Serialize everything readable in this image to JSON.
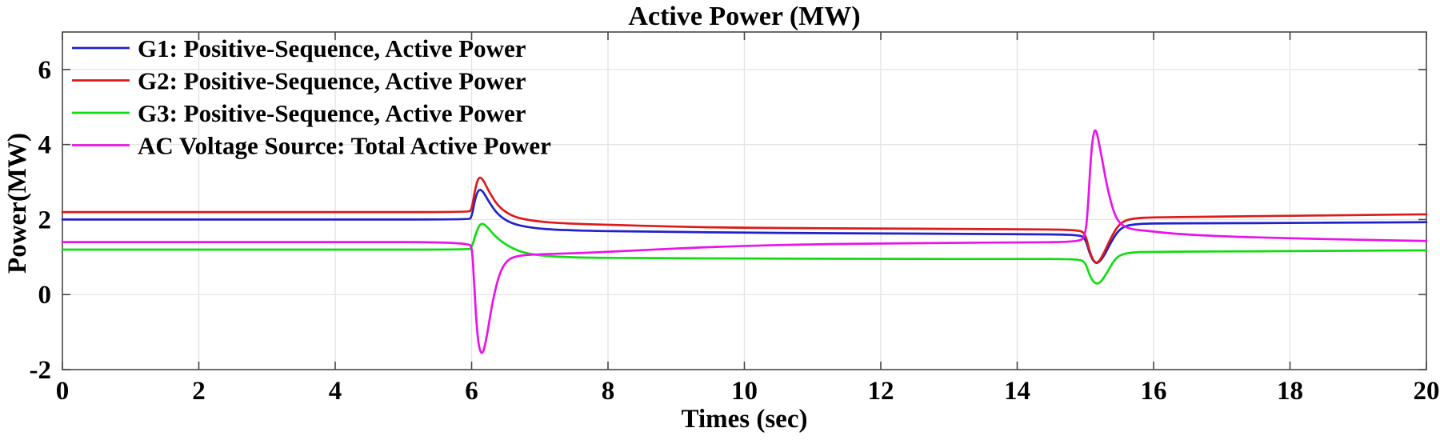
{
  "chart_data": {
    "type": "line",
    "title": "Active Power (MW)",
    "xlabel": "Times (sec)",
    "ylabel": "Power(MW)",
    "xlim": [
      0,
      20
    ],
    "ylim": [
      -2,
      7
    ],
    "xticks": [
      0,
      2,
      4,
      6,
      8,
      10,
      12,
      14,
      16,
      18,
      20
    ],
    "xtick_labels": [
      "0",
      "2",
      "4",
      "6",
      "8",
      "10",
      "12",
      "14",
      "16",
      "18",
      "20"
    ],
    "yticks": [
      -2,
      0,
      2,
      4,
      6
    ],
    "ytick_labels": [
      "-2",
      "0",
      "2",
      "4",
      "6"
    ],
    "grid": true,
    "legend_position": "top-left-inside",
    "legend_border": false,
    "colors": {
      "background": "#FFFFFF",
      "grid": "#E4E4E4",
      "axis": "#474747",
      "text": "#000000"
    },
    "series": [
      {
        "id": "g1",
        "name": "G1: Positive-Sequence, Active Power",
        "color": "#2121CC",
        "points": [
          [
            0,
            2.0
          ],
          [
            2,
            2.0
          ],
          [
            4,
            2.0
          ],
          [
            5.95,
            2.0
          ],
          [
            6.0,
            2.05
          ],
          [
            6.05,
            2.55
          ],
          [
            6.1,
            2.8
          ],
          [
            6.16,
            2.78
          ],
          [
            6.26,
            2.45
          ],
          [
            6.4,
            2.1
          ],
          [
            6.6,
            1.88
          ],
          [
            6.9,
            1.77
          ],
          [
            7.3,
            1.72
          ],
          [
            8,
            1.69
          ],
          [
            9,
            1.67
          ],
          [
            10,
            1.65
          ],
          [
            11,
            1.64
          ],
          [
            12,
            1.63
          ],
          [
            13,
            1.62
          ],
          [
            14,
            1.61
          ],
          [
            14.9,
            1.6
          ],
          [
            15.0,
            1.5
          ],
          [
            15.06,
            1.1
          ],
          [
            15.13,
            0.85
          ],
          [
            15.19,
            0.84
          ],
          [
            15.27,
            1.02
          ],
          [
            15.37,
            1.38
          ],
          [
            15.47,
            1.68
          ],
          [
            15.58,
            1.83
          ],
          [
            15.75,
            1.88
          ],
          [
            16,
            1.9
          ],
          [
            17,
            1.9
          ],
          [
            18,
            1.91
          ],
          [
            19,
            1.92
          ],
          [
            20,
            1.93
          ]
        ]
      },
      {
        "id": "g2",
        "name": "G2: Positive-Sequence, Active Power",
        "color": "#DC1A1A",
        "points": [
          [
            0,
            2.2
          ],
          [
            2,
            2.2
          ],
          [
            4,
            2.2
          ],
          [
            5.95,
            2.2
          ],
          [
            6.0,
            2.25
          ],
          [
            6.05,
            2.8
          ],
          [
            6.1,
            3.13
          ],
          [
            6.16,
            3.1
          ],
          [
            6.26,
            2.72
          ],
          [
            6.4,
            2.33
          ],
          [
            6.6,
            2.08
          ],
          [
            6.9,
            1.96
          ],
          [
            7.3,
            1.9
          ],
          [
            8,
            1.86
          ],
          [
            9,
            1.81
          ],
          [
            10,
            1.78
          ],
          [
            11,
            1.77
          ],
          [
            12,
            1.76
          ],
          [
            13,
            1.75
          ],
          [
            14,
            1.74
          ],
          [
            14.9,
            1.73
          ],
          [
            15.0,
            1.62
          ],
          [
            15.06,
            1.15
          ],
          [
            15.13,
            0.86
          ],
          [
            15.19,
            0.85
          ],
          [
            15.27,
            1.1
          ],
          [
            15.37,
            1.5
          ],
          [
            15.47,
            1.82
          ],
          [
            15.58,
            1.98
          ],
          [
            15.75,
            2.04
          ],
          [
            16,
            2.06
          ],
          [
            17,
            2.08
          ],
          [
            18,
            2.1
          ],
          [
            19,
            2.12
          ],
          [
            20,
            2.14
          ]
        ]
      },
      {
        "id": "g3",
        "name": "G3: Positive-Sequence, Active Power",
        "color": "#10DC10",
        "points": [
          [
            0,
            1.2
          ],
          [
            2,
            1.2
          ],
          [
            4,
            1.2
          ],
          [
            5.95,
            1.2
          ],
          [
            6.0,
            1.24
          ],
          [
            6.06,
            1.62
          ],
          [
            6.13,
            1.92
          ],
          [
            6.22,
            1.83
          ],
          [
            6.36,
            1.52
          ],
          [
            6.56,
            1.26
          ],
          [
            6.8,
            1.09
          ],
          [
            7.2,
            1.01
          ],
          [
            7.8,
            0.98
          ],
          [
            9,
            0.97
          ],
          [
            10,
            0.96
          ],
          [
            12,
            0.95
          ],
          [
            14,
            0.95
          ],
          [
            14.9,
            0.95
          ],
          [
            15.0,
            0.86
          ],
          [
            15.06,
            0.52
          ],
          [
            15.13,
            0.3
          ],
          [
            15.21,
            0.29
          ],
          [
            15.31,
            0.56
          ],
          [
            15.42,
            0.92
          ],
          [
            15.53,
            1.08
          ],
          [
            15.72,
            1.13
          ],
          [
            16,
            1.14
          ],
          [
            17,
            1.15
          ],
          [
            18,
            1.16
          ],
          [
            19,
            1.17
          ],
          [
            20,
            1.18
          ]
        ]
      },
      {
        "id": "ac-source",
        "name": "AC Voltage Source: Total Active Power",
        "color": "#EA12EA",
        "points": [
          [
            0,
            1.4
          ],
          [
            2,
            1.4
          ],
          [
            4,
            1.4
          ],
          [
            5.97,
            1.4
          ],
          [
            6.01,
            1.2
          ],
          [
            6.04,
            0.2
          ],
          [
            6.08,
            -1.0
          ],
          [
            6.12,
            -1.52
          ],
          [
            6.17,
            -1.58
          ],
          [
            6.23,
            -1.05
          ],
          [
            6.31,
            -0.15
          ],
          [
            6.41,
            0.58
          ],
          [
            6.52,
            0.92
          ],
          [
            6.66,
            1.03
          ],
          [
            6.9,
            1.07
          ],
          [
            7.5,
            1.1
          ],
          [
            8,
            1.14
          ],
          [
            9,
            1.23
          ],
          [
            10,
            1.3
          ],
          [
            11,
            1.34
          ],
          [
            12,
            1.36
          ],
          [
            13,
            1.38
          ],
          [
            14,
            1.39
          ],
          [
            14.9,
            1.4
          ],
          [
            15.0,
            1.55
          ],
          [
            15.04,
            2.4
          ],
          [
            15.08,
            3.7
          ],
          [
            15.12,
            4.35
          ],
          [
            15.16,
            4.4
          ],
          [
            15.22,
            3.85
          ],
          [
            15.32,
            2.85
          ],
          [
            15.42,
            2.15
          ],
          [
            15.52,
            1.86
          ],
          [
            15.67,
            1.74
          ],
          [
            15.9,
            1.7
          ],
          [
            16.3,
            1.62
          ],
          [
            17,
            1.55
          ],
          [
            18,
            1.5
          ],
          [
            19,
            1.46
          ],
          [
            20,
            1.43
          ]
        ]
      }
    ]
  }
}
